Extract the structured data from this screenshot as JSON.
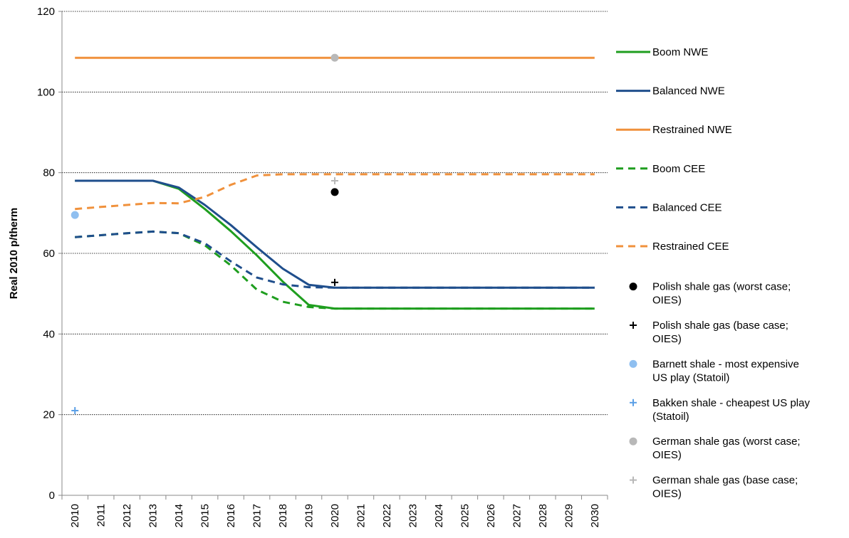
{
  "chart_data": {
    "type": "line",
    "title": "",
    "xlabel": "",
    "ylabel": "Real 2010 p/therm",
    "ylim": [
      0,
      120
    ],
    "yticks": [
      0,
      20,
      40,
      60,
      80,
      100,
      120
    ],
    "grid": "horizontal dotted",
    "legend_position": "right",
    "categories": [
      "2010",
      "2011",
      "2012",
      "2013",
      "2014",
      "2015",
      "2016",
      "2017",
      "2018",
      "2019",
      "2020",
      "2021",
      "2022",
      "2023",
      "2024",
      "2025",
      "2026",
      "2027",
      "2028",
      "2029",
      "2030"
    ],
    "series": [
      {
        "name": "Boom NWE",
        "style": "solid",
        "color": "#1f9e1f",
        "values": [
          78,
          78,
          78,
          78,
          76,
          71,
          65.5,
          59.5,
          53,
          47.2,
          46.3,
          46.3,
          46.3,
          46.3,
          46.3,
          46.3,
          46.3,
          46.3,
          46.3,
          46.3,
          46.3
        ]
      },
      {
        "name": "Balanced NWE",
        "style": "solid",
        "color": "#1f4e8c",
        "values": [
          78,
          78,
          78,
          78,
          76.3,
          72,
          67,
          61.5,
          56.2,
          52.2,
          51.5,
          51.5,
          51.5,
          51.5,
          51.5,
          51.5,
          51.5,
          51.5,
          51.5,
          51.5,
          51.5
        ]
      },
      {
        "name": "Restrained NWE",
        "style": "solid",
        "color": "#f0913c",
        "values": [
          108.5,
          108.5,
          108.5,
          108.5,
          108.5,
          108.5,
          108.5,
          108.5,
          108.5,
          108.5,
          108.5,
          108.5,
          108.5,
          108.5,
          108.5,
          108.5,
          108.5,
          108.5,
          108.5,
          108.5,
          108.5
        ]
      },
      {
        "name": "Boom CEE",
        "style": "dashed",
        "color": "#1f9e1f",
        "values": [
          64,
          64.5,
          65,
          65.4,
          65,
          62,
          57,
          51,
          48,
          46.7,
          46.3,
          46.3,
          46.3,
          46.3,
          46.3,
          46.3,
          46.3,
          46.3,
          46.3,
          46.3,
          46.3
        ]
      },
      {
        "name": "Balanced CEE",
        "style": "dashed",
        "color": "#1f4e8c",
        "values": [
          64,
          64.5,
          65,
          65.4,
          65,
          62.5,
          58,
          54,
          52.3,
          51.6,
          51.5,
          51.5,
          51.5,
          51.5,
          51.5,
          51.5,
          51.5,
          51.5,
          51.5,
          51.5,
          51.5
        ]
      },
      {
        "name": "Restrained CEE",
        "style": "dashed",
        "color": "#f0913c",
        "values": [
          71,
          71.5,
          72,
          72.5,
          72.4,
          74,
          77,
          79.3,
          79.6,
          79.6,
          79.6,
          79.6,
          79.6,
          79.6,
          79.6,
          79.6,
          79.6,
          79.6,
          79.6,
          79.6,
          79.6
        ]
      }
    ],
    "points": [
      {
        "name": "Polish shale gas (worst case; OIES)",
        "marker": "circle",
        "color": "#000000",
        "x": "2020",
        "y": 75.2
      },
      {
        "name": "Polish shale gas (base case; OIES)",
        "marker": "plus",
        "color": "#000000",
        "x": "2020",
        "y": 52.8
      },
      {
        "name": "Barnett shale - most expensive US play (Statoil)",
        "marker": "circle",
        "color": "#8fbff0",
        "x": "2010",
        "y": 69.5
      },
      {
        "name": "Bakken shale - cheapest US play (Statoil)",
        "marker": "plus",
        "color": "#5a9fe6",
        "x": "2010",
        "y": 21
      },
      {
        "name": "German shale gas (worst case; OIES)",
        "marker": "circle",
        "color": "#b8b8b8",
        "x": "2020",
        "y": 108.5
      },
      {
        "name": "German shale gas (base case; OIES)",
        "marker": "plus",
        "color": "#b8b8b8",
        "x": "2020",
        "y": 78
      }
    ],
    "legend": [
      {
        "lines": [
          "Boom NWE"
        ],
        "kind": "line",
        "style": "solid",
        "color": "#1f9e1f"
      },
      {
        "lines": [
          "Balanced NWE"
        ],
        "kind": "line",
        "style": "solid",
        "color": "#1f4e8c"
      },
      {
        "lines": [
          "Restrained NWE"
        ],
        "kind": "line",
        "style": "solid",
        "color": "#f0913c"
      },
      {
        "lines": [
          "Boom CEE"
        ],
        "kind": "line",
        "style": "dashed",
        "color": "#1f9e1f"
      },
      {
        "lines": [
          "Balanced CEE"
        ],
        "kind": "line",
        "style": "dashed",
        "color": "#1f4e8c"
      },
      {
        "lines": [
          "Restrained CEE"
        ],
        "kind": "line",
        "style": "dashed",
        "color": "#f0913c"
      },
      {
        "lines": [
          "Polish shale gas (worst case;",
          "OIES)"
        ],
        "kind": "marker",
        "marker": "circle",
        "color": "#000000"
      },
      {
        "lines": [
          "Polish shale gas (base case;",
          "OIES)"
        ],
        "kind": "marker",
        "marker": "plus",
        "color": "#000000"
      },
      {
        "lines": [
          "Barnett shale - most expensive",
          "US play (Statoil)"
        ],
        "kind": "marker",
        "marker": "circle",
        "color": "#8fbff0"
      },
      {
        "lines": [
          "Bakken shale - cheapest US play",
          "(Statoil)"
        ],
        "kind": "marker",
        "marker": "plus",
        "color": "#5a9fe6"
      },
      {
        "lines": [
          "German shale gas (worst case;",
          "OIES)"
        ],
        "kind": "marker",
        "marker": "circle",
        "color": "#b8b8b8"
      },
      {
        "lines": [
          "German shale gas (base case;",
          "OIES)"
        ],
        "kind": "marker",
        "marker": "plus",
        "color": "#b8b8b8"
      }
    ]
  }
}
